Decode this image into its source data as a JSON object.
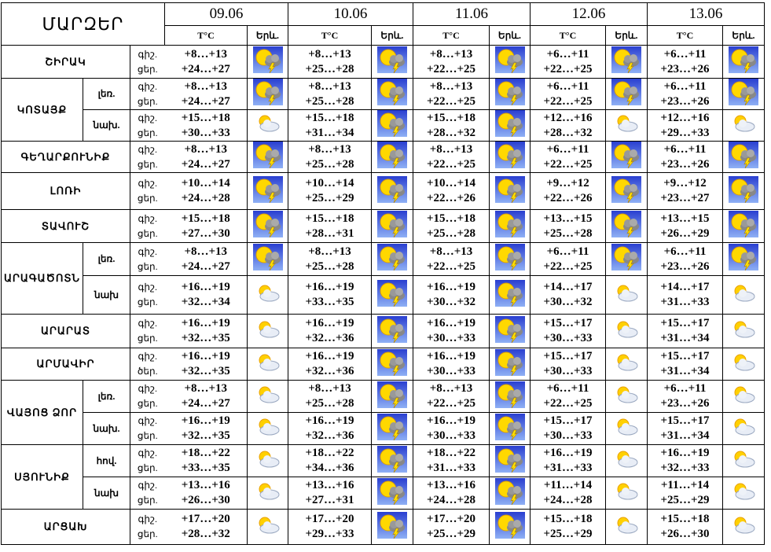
{
  "header": {
    "title": "ՄԱՐԶԵՐ",
    "dates": [
      "09.06",
      "10.06",
      "11.06",
      "12.06",
      "13.06"
    ],
    "temp_label": "T°C",
    "phen_label": "Երև."
  },
  "regions": [
    {
      "name": "ՇԻՐԱԿ",
      "subs": [
        {
          "labels": [
            "գիշ.",
            "ցեր."
          ],
          "days": [
            {
              "night": "+8…+13",
              "day": "+24…+27",
              "icon": "storm"
            },
            {
              "night": "+8…+13",
              "day": "+25…+28",
              "icon": "storm"
            },
            {
              "night": "+8…+13",
              "day": "+22…+25",
              "icon": "storm"
            },
            {
              "night": "+6…+11",
              "day": "+22…+25",
              "icon": "storm"
            },
            {
              "night": "+6…+11",
              "day": "+23…+26",
              "icon": "storm"
            }
          ]
        }
      ]
    },
    {
      "name": "ԿՈՏԱՅՔ",
      "subs": [
        {
          "name": "լեռ.",
          "labels": [
            "գիշ.",
            "ցեր."
          ],
          "days": [
            {
              "night": "+8…+13",
              "day": "+24…+27",
              "icon": "storm"
            },
            {
              "night": "+8…+13",
              "day": "+25…+28",
              "icon": "storm"
            },
            {
              "night": "+8…+13",
              "day": "+22…+25",
              "icon": "storm"
            },
            {
              "night": "+6…+11",
              "day": "+22…+25",
              "icon": "storm"
            },
            {
              "night": "+6…+11",
              "day": "+23…+26",
              "icon": "storm"
            }
          ]
        },
        {
          "name": "նախ.",
          "labels": [
            "գիշ.",
            "ցեր."
          ],
          "days": [
            {
              "night": "+15…+18",
              "day": "+30…+33",
              "icon": "cloudy"
            },
            {
              "night": "+15…+18",
              "day": "+31…+34",
              "icon": "storm"
            },
            {
              "night": "+15…+18",
              "day": "+28…+32",
              "icon": "storm"
            },
            {
              "night": "+12…+16",
              "day": "+28…+32",
              "icon": "cloudy"
            },
            {
              "night": "+12…+16",
              "day": "+29…+33",
              "icon": "cloudy"
            }
          ]
        }
      ]
    },
    {
      "name": "ԳԵՂԱՐՔՈՒՆԻՔ",
      "subs": [
        {
          "labels": [
            "գիշ.",
            "ցեր."
          ],
          "days": [
            {
              "night": "+8…+13",
              "day": "+24…+27",
              "icon": "storm"
            },
            {
              "night": "+8…+13",
              "day": "+25…+28",
              "icon": "storm"
            },
            {
              "night": "+8…+13",
              "day": "+22…+25",
              "icon": "storm"
            },
            {
              "night": "+6…+11",
              "day": "+22…+25",
              "icon": "storm"
            },
            {
              "night": "+6…+11",
              "day": "+23…+26",
              "icon": "storm"
            }
          ]
        }
      ]
    },
    {
      "name": "ԼՈՌԻ",
      "subs": [
        {
          "labels": [
            "գիշ.",
            "ցեր."
          ],
          "days": [
            {
              "night": "+10…+14",
              "day": "+24…+28",
              "icon": "storm"
            },
            {
              "night": "+10…+14",
              "day": "+25…+29",
              "icon": "storm"
            },
            {
              "night": "+10…+14",
              "day": "+22…+26",
              "icon": "storm"
            },
            {
              "night": "+9…+12",
              "day": "+22…+26",
              "icon": "storm"
            },
            {
              "night": "+9…+12",
              "day": "+23…+27",
              "icon": "storm"
            }
          ]
        }
      ]
    },
    {
      "name": "ՏԱՎՈՒՇ",
      "subs": [
        {
          "labels": [
            "գիշ.",
            "ցեր."
          ],
          "days": [
            {
              "night": "+15…+18",
              "day": "+27…+30",
              "icon": "storm"
            },
            {
              "night": "+15…+18",
              "day": "+28…+31",
              "icon": "storm"
            },
            {
              "night": "+15…+18",
              "day": "+25…+28",
              "icon": "storm"
            },
            {
              "night": "+13…+15",
              "day": "+25…+28",
              "icon": "storm"
            },
            {
              "night": "+13…+15",
              "day": "+26…+29",
              "icon": "storm"
            }
          ]
        }
      ]
    },
    {
      "name": "ԱՐԱԳԱԾՈՏՆ",
      "subs": [
        {
          "name": "լեռ.",
          "labels": [
            "գիշ.",
            "ցեր."
          ],
          "days": [
            {
              "night": "+8…+13",
              "day": "+24…+27",
              "icon": "storm"
            },
            {
              "night": "+8…+13",
              "day": "+25…+28",
              "icon": "storm"
            },
            {
              "night": "+8…+13",
              "day": "+22…+25",
              "icon": "storm"
            },
            {
              "night": "+6…+11",
              "day": "+22…+25",
              "icon": "storm"
            },
            {
              "night": "+6…+11",
              "day": "+23…+26",
              "icon": "storm"
            }
          ]
        },
        {
          "name": "նախ",
          "labels": [
            "գիշ.",
            "ցեր."
          ],
          "days": [
            {
              "night": "+16…+19",
              "day": "+32…+34",
              "icon": "cloudy"
            },
            {
              "night": "+16…+19",
              "day": "+33…+35",
              "icon": "storm"
            },
            {
              "night": "+16…+19",
              "day": "+30…+32",
              "icon": "storm"
            },
            {
              "night": "+14…+17",
              "day": "+30…+32",
              "icon": "cloudy"
            },
            {
              "night": "+14…+17",
              "day": "+31…+33",
              "icon": "cloudy"
            }
          ]
        }
      ]
    },
    {
      "name": "ԱՐԱՐԱՏ",
      "subs": [
        {
          "labels": [
            "գիշ.",
            "ցեր."
          ],
          "days": [
            {
              "night": "+16…+19",
              "day": "+32…+35",
              "icon": "cloudy"
            },
            {
              "night": "+16…+19",
              "day": "+32…+36",
              "icon": "storm"
            },
            {
              "night": "+16…+19",
              "day": "+30…+33",
              "icon": "storm"
            },
            {
              "night": "+15…+17",
              "day": "+30…+33",
              "icon": "cloudy"
            },
            {
              "night": "+15…+17",
              "day": "+31…+34",
              "icon": "cloudy"
            }
          ]
        }
      ]
    },
    {
      "name": "ԱՐՄԱՎԻՐ",
      "subs": [
        {
          "labels": [
            "գիշ.",
            "ծեր."
          ],
          "days": [
            {
              "night": "+16…+19",
              "day": "+32…+35",
              "icon": "cloudy"
            },
            {
              "night": "+16…+19",
              "day": "+32…+36",
              "icon": "storm"
            },
            {
              "night": "+16…+19",
              "day": "+30…+33",
              "icon": "storm"
            },
            {
              "night": "+15…+17",
              "day": "+30…+33",
              "icon": "cloudy"
            },
            {
              "night": "+15…+17",
              "day": "+31…+34",
              "icon": "cloudy"
            }
          ]
        }
      ]
    },
    {
      "name": "ՎԱՅՈՑ ՁՈՐ",
      "subs": [
        {
          "name": "լեռ.",
          "labels": [
            "գիշ.",
            "ցեր."
          ],
          "days": [
            {
              "night": "+8…+13",
              "day": "+24…+27",
              "icon": "cloudy"
            },
            {
              "night": "+8…+13",
              "day": "+25…+28",
              "icon": "storm"
            },
            {
              "night": "+8…+13",
              "day": "+22…+25",
              "icon": "storm"
            },
            {
              "night": "+6…+11",
              "day": "+22…+25",
              "icon": "cloudy"
            },
            {
              "night": "+6…+11",
              "day": "+23…+26",
              "icon": "cloudy"
            }
          ]
        },
        {
          "name": "նախ.",
          "labels": [
            "գիշ.",
            "ցեր."
          ],
          "days": [
            {
              "night": "+16…+19",
              "day": "+32…+35",
              "icon": "cloudy"
            },
            {
              "night": "+16…+19",
              "day": "+32…+36",
              "icon": "storm"
            },
            {
              "night": "+16…+19",
              "day": "+30…+33",
              "icon": "storm"
            },
            {
              "night": "+15…+17",
              "day": "+30…+33",
              "icon": "cloudy"
            },
            {
              "night": "+15…+17",
              "day": "+31…+34",
              "icon": "cloudy"
            }
          ]
        }
      ]
    },
    {
      "name": "ՍՅՈՒՆԻՔ",
      "subs": [
        {
          "name": "հով.",
          "labels": [
            "գիշ.",
            "ցեր."
          ],
          "days": [
            {
              "night": "+18…+22",
              "day": "+33…+35",
              "icon": "cloudy"
            },
            {
              "night": "+18…+22",
              "day": "+34…+36",
              "icon": "storm"
            },
            {
              "night": "+18…+22",
              "day": "+31…+33",
              "icon": "storm"
            },
            {
              "night": "+16…+19",
              "day": "+31…+33",
              "icon": "cloudy"
            },
            {
              "night": "+16…+19",
              "day": "+32…+33",
              "icon": "cloudy"
            }
          ]
        },
        {
          "name": "նախ",
          "labels": [
            "գիշ.",
            "ցեր."
          ],
          "days": [
            {
              "night": "+13…+16",
              "day": "+26…+30",
              "icon": "cloudy"
            },
            {
              "night": "+13…+16",
              "day": "+27…+31",
              "icon": "storm"
            },
            {
              "night": "+13…+16",
              "day": "+24…+28",
              "icon": "storm"
            },
            {
              "night": "+11…+14",
              "day": "+24…+28",
              "icon": "cloudy"
            },
            {
              "night": "+11…+14",
              "day": "+25…+29",
              "icon": "cloudy"
            }
          ]
        }
      ]
    },
    {
      "name": "ԱՐՑԱԽ",
      "subs": [
        {
          "labels": [
            "գիշ.",
            "ցեր."
          ],
          "days": [
            {
              "night": "+17…+20",
              "day": "+28…+32",
              "icon": "cloudy"
            },
            {
              "night": "+17…+20",
              "day": "+29…+33",
              "icon": "storm"
            },
            {
              "night": "+17…+20",
              "day": "+25…+29",
              "icon": "storm"
            },
            {
              "night": "+15…+18",
              "day": "+25…+29",
              "icon": "cloudy"
            },
            {
              "night": "+15…+18",
              "day": "+26…+30",
              "icon": "cloudy"
            }
          ]
        }
      ]
    }
  ]
}
